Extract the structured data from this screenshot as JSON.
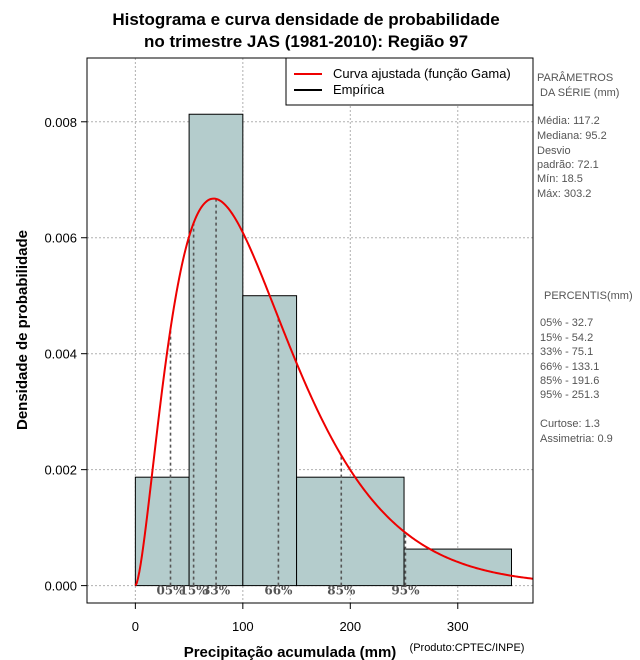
{
  "chart_data": {
    "type": "histogram",
    "title_lines": [
      "Histograma e curva densidade de probabilidade",
      "no trimestre JAS (1981-2010): Região 97"
    ],
    "xlabel": "Precipitação acumulada (mm)",
    "ylabel": "Densidade de probabilidade",
    "credit": "(Produto:CPTEC/INPE)",
    "xlim": [
      -45,
      370
    ],
    "ylim": [
      -0.0003,
      0.0091
    ],
    "x_ticks": [
      0,
      100,
      200,
      300
    ],
    "y_ticks": [
      0.0,
      0.002,
      0.004,
      0.006,
      0.008
    ],
    "y_tick_labels": [
      "0.000",
      "0.002",
      "0.004",
      "0.006",
      "0.008"
    ],
    "grid": true,
    "bins": [
      {
        "start": 0,
        "end": 50,
        "density": 0.00187
      },
      {
        "start": 50,
        "end": 100,
        "density": 0.00813
      },
      {
        "start": 100,
        "end": 150,
        "density": 0.005
      },
      {
        "start": 150,
        "end": 250,
        "density": 0.00187
      },
      {
        "start": 250,
        "end": 350,
        "density": 0.00063
      }
    ],
    "bar_color": "#b4cccc",
    "gamma_fit": {
      "mean": 117.2,
      "sd": 72.1,
      "color": "#ee0000",
      "x_range": [
        0,
        370
      ]
    },
    "percentile_markers": [
      {
        "label": "05%",
        "value": 32.7
      },
      {
        "label": "15%",
        "value": 54.2
      },
      {
        "label": "33%",
        "value": 75.1
      },
      {
        "label": "66%",
        "value": 133.1
      },
      {
        "label": "85%",
        "value": 191.6
      },
      {
        "label": "95%",
        "value": 251.3
      }
    ],
    "legend": {
      "position": "top-right",
      "entries": [
        {
          "label": "Curva ajustada (função Gama)",
          "color": "#ee0000"
        },
        {
          "label": "Empírica",
          "color": "#000000"
        }
      ]
    }
  },
  "side_panel": {
    "params_title_1": "PARÂMETROS",
    "params_title_2": "DA SÉRIE (mm)",
    "media": "Média:  117.2",
    "mediana": "Mediana:  95.2",
    "desvio_1": "Desvio",
    "desvio_2": "padrão:  72.1",
    "min": "Mín:  18.5",
    "max": "Máx:  303.2",
    "percentis_title": "PERCENTIS(mm)",
    "p05": "05% -  32.7",
    "p15": "15% -  54.2",
    "p33": "33% -  75.1",
    "p66": "66% -  133.1",
    "p85": "85% -  191.6",
    "p95": "95% -  251.3",
    "curtose": "Curtose:  1.3",
    "assimetria": "Assimetria:  0.9"
  }
}
